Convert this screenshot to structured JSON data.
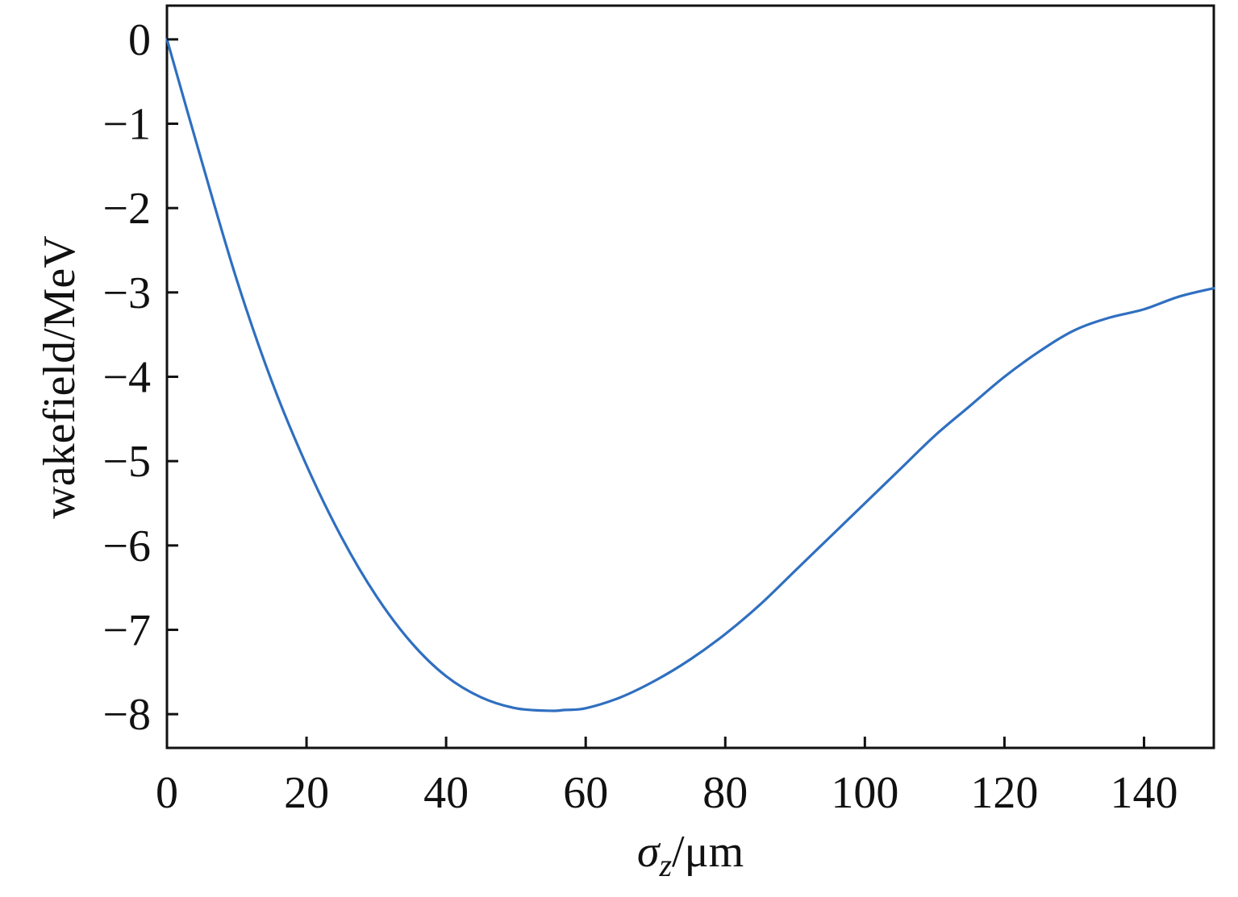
{
  "chart_data": {
    "type": "line",
    "title": "",
    "xlabel": "σz/μm",
    "xlabel_parts": {
      "symbol": "σ",
      "subscript": "z",
      "unit": "/μm"
    },
    "ylabel": "wakefield/MeV",
    "xlim": [
      0,
      150
    ],
    "ylim": [
      -8.4,
      0.4
    ],
    "x_ticks": [
      0,
      20,
      40,
      60,
      80,
      100,
      120,
      140
    ],
    "x_tick_labels": [
      "0",
      "20",
      "40",
      "60",
      "80",
      "100",
      "120",
      "140"
    ],
    "y_ticks": [
      0,
      -1,
      -2,
      -3,
      -4,
      -5,
      -6,
      -7,
      -8
    ],
    "y_tick_labels": [
      "0",
      "−1",
      "−2",
      "−3",
      "−4",
      "−5",
      "−6",
      "−7",
      "−8"
    ],
    "grid": false,
    "legend": "none",
    "series": [
      {
        "color": "#2f6fc0",
        "x": [
          0,
          5,
          10,
          15,
          20,
          25,
          30,
          35,
          40,
          45,
          50,
          55,
          57,
          60,
          65,
          70,
          75,
          80,
          85,
          90,
          95,
          100,
          105,
          110,
          115,
          120,
          125,
          130,
          135,
          140,
          145,
          150
        ],
        "y": [
          0.0,
          -1.45,
          -2.85,
          -4.05,
          -5.05,
          -5.9,
          -6.6,
          -7.15,
          -7.55,
          -7.8,
          -7.93,
          -7.96,
          -7.95,
          -7.93,
          -7.8,
          -7.6,
          -7.35,
          -7.05,
          -6.7,
          -6.3,
          -5.9,
          -5.5,
          -5.1,
          -4.7,
          -4.35,
          -4.0,
          -3.7,
          -3.45,
          -3.3,
          -3.2,
          -3.05,
          -2.95
        ]
      }
    ]
  }
}
